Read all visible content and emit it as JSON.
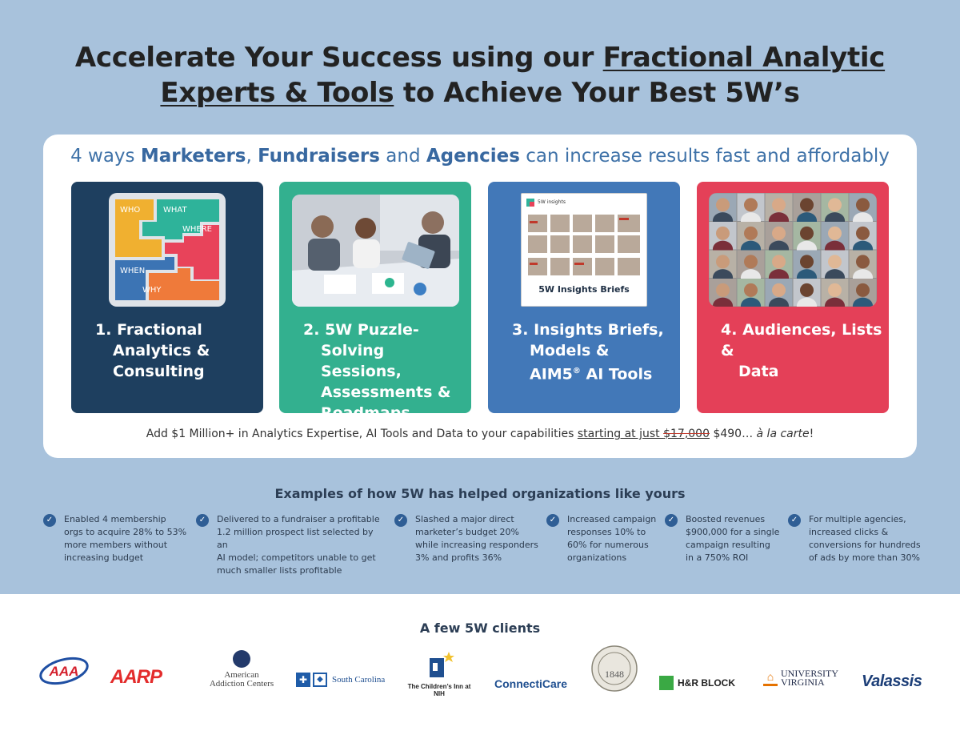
{
  "header": {
    "part1": "Accelerate Your Success using our ",
    "part2": "Fractional Analytic",
    "part3": "Experts & Tools",
    "part4": " to Achieve Your Best 5W’s"
  },
  "subhead": {
    "a": "4 ways ",
    "b": "Marketers",
    "c": ", ",
    "d": "Fundraisers",
    "e": " and ",
    "f": "Agencies",
    "g": " can increase results fast and affordably"
  },
  "cards": [
    {
      "num": "1.",
      "line1": "Fractional",
      "line2": "Analytics &",
      "line3": "Consulting",
      "line4": ""
    },
    {
      "num": "2.",
      "line1": "5W Puzzle-",
      "line2": "Solving Sessions,",
      "line3": "Assessments &",
      "line4": "Roadmaps"
    },
    {
      "num": "3.",
      "line1": "Insights Briefs,",
      "line2": "Models &",
      "line3": "AIM5",
      "line4": " AI Tools"
    },
    {
      "num": "4.",
      "line1": "Audiences, Lists &",
      "line2": "Data",
      "line3": "",
      "line4": ""
    }
  ],
  "puzzle": {
    "who": "WHO",
    "what": "WHAT",
    "where": "WHERE",
    "when": "WHEN",
    "why": "WHY"
  },
  "brief": {
    "caption": "5W Insights Briefs",
    "logo": "5W insights"
  },
  "tagline": {
    "a": "Add $1 Million+ in Analytics Expertise, AI Tools and Data to your capabilities ",
    "b": "starting at just ",
    "c": "$17,000",
    "d": " $490… ",
    "e": "à la carte",
    "f": "!"
  },
  "examples_title": "Examples of how 5W has helped organizations like yours",
  "examples": [
    {
      "l1": "Enabled 4 membership",
      "l2": "orgs to acquire 28% to 53%",
      "l3": "more members without",
      "l4": "increasing budget"
    },
    {
      "l1": "Delivered to a fundraiser a profitable",
      "l2": "1.2 million prospect list selected by an",
      "l3": "AI model; competitors unable to get",
      "l4": "much smaller lists profitable"
    },
    {
      "l1": "Slashed a major direct",
      "l2": "marketer’s budget 20%",
      "l3": "while increasing responders",
      "l4": "3% and profits 36%"
    },
    {
      "l1": "Increased campaign",
      "l2": "responses 10% to",
      "l3": "60% for numerous",
      "l4": "organizations"
    },
    {
      "l1": "Boosted revenues",
      "l2": "$900,000 for a single",
      "l3": "campaign resulting",
      "l4": "in a 750% ROI"
    },
    {
      "l1": "For multiple agencies,",
      "l2": "increased clicks &",
      "l3": "conversions for hundreds",
      "l4": "of ads by more than 30%"
    }
  ],
  "clients_title": "A few 5W clients",
  "clients": {
    "aaa": "AAA",
    "aarp": "AARP",
    "aac1": "American",
    "aac2": "Addiction Centers",
    "bcbs": "South Carolina",
    "inn": "The Children’s Inn at NIH",
    "connecticare": "ConnectiCare",
    "seal": "1848",
    "hrblock": "H&R BLOCK",
    "uva1": "UNIVERSITY",
    "uva2": "VIRGINIA",
    "valassis": "Valassis"
  },
  "colors": {
    "background": "#a8c2dc",
    "card1": "#1e3f5f",
    "card2": "#33b08f",
    "card3": "#4278b8",
    "card4": "#e44058",
    "accent_text": "#3868a0"
  }
}
